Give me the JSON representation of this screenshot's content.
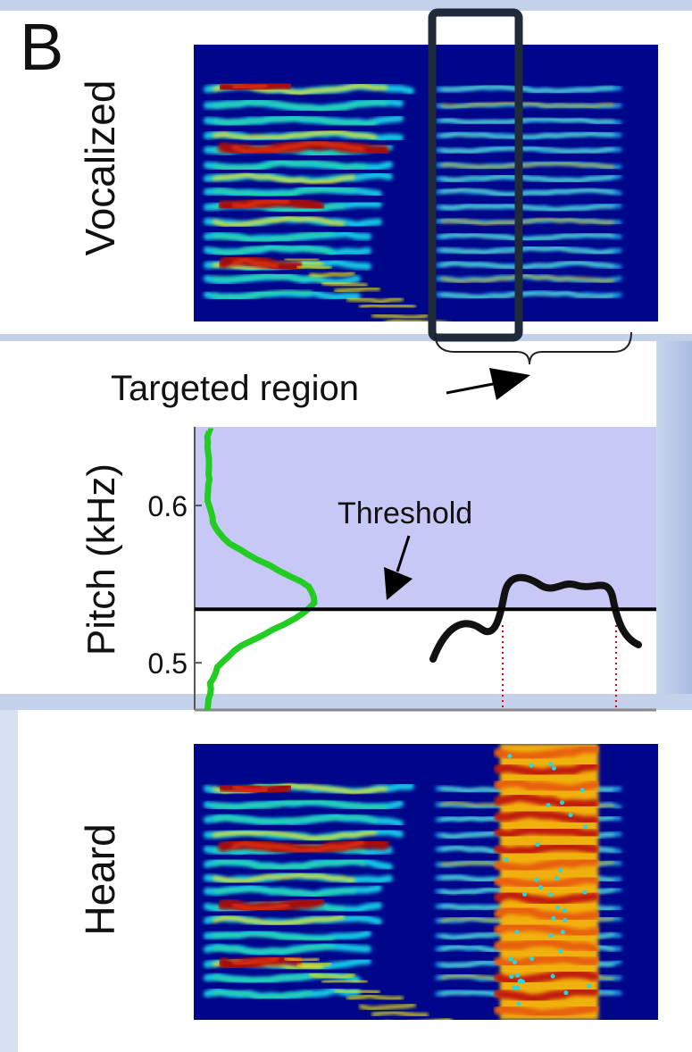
{
  "panel_label": "B",
  "top_label": "Vocalized",
  "bottom_label": "Heard",
  "targeted_label": "Targeted region",
  "pitch_plot": {
    "ylabel": "Pitch (kHz)",
    "ylim": [
      0.47,
      0.65
    ],
    "yticks": [
      0.5,
      0.6
    ],
    "threshold": 0.534,
    "threshold_label": "Threshold"
  }
}
